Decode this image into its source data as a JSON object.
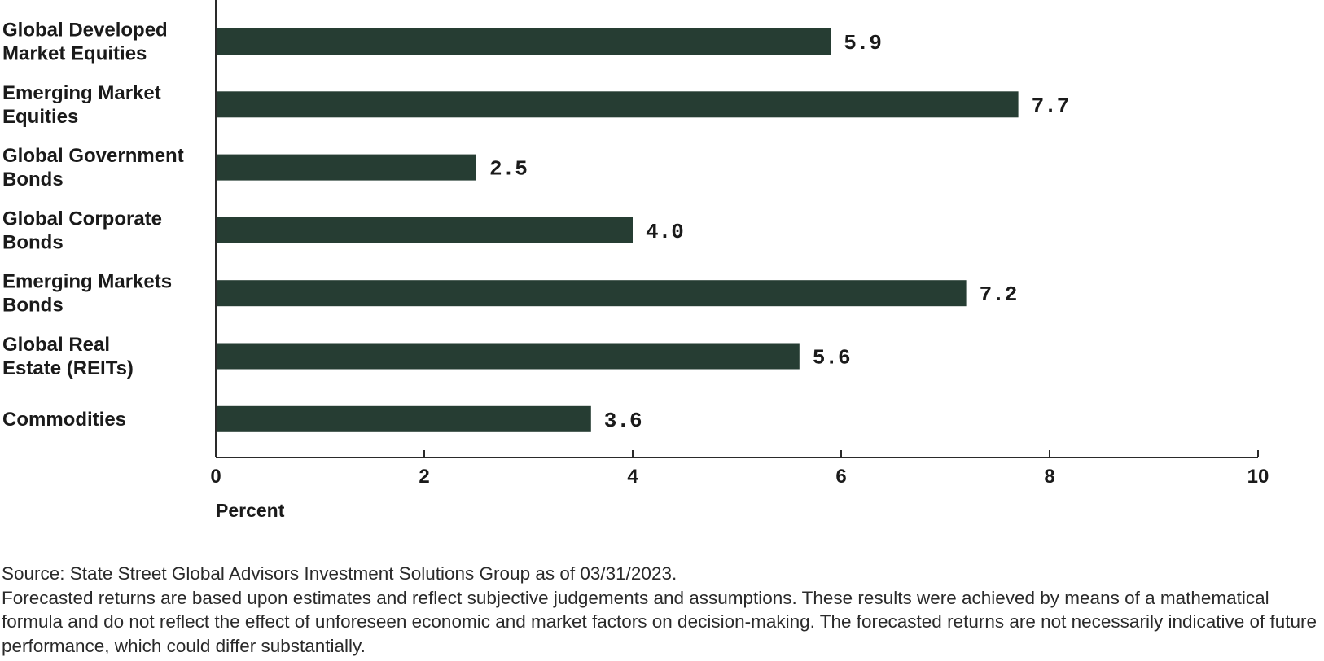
{
  "chart_data": {
    "type": "bar",
    "orientation": "horizontal",
    "categories": [
      [
        "Global Developed",
        "Market Equities"
      ],
      [
        "Emerging Market",
        "Equities"
      ],
      [
        "Global Government",
        "Bonds"
      ],
      [
        "Global Corporate",
        "Bonds"
      ],
      [
        "Emerging Markets",
        "Bonds"
      ],
      [
        "Global Real",
        "Estate (REITs)"
      ],
      [
        "Commodities"
      ]
    ],
    "values": [
      5.9,
      7.7,
      2.5,
      4.0,
      7.2,
      5.6,
      3.6
    ],
    "value_labels": [
      "5.9",
      "7.7",
      "2.5",
      "4.0",
      "7.2",
      "5.6",
      "3.6"
    ],
    "xlabel": "Percent",
    "ylabel": "",
    "xlim": [
      0,
      10
    ],
    "xticks": [
      0,
      2,
      4,
      6,
      8,
      10
    ],
    "grid": false,
    "bar_color": "#263d33"
  },
  "notes": {
    "source": "Source: State Street Global Advisors Investment Solutions Group as of 03/31/2023.",
    "disclaimer": "Forecasted returns are based upon estimates and reflect subjective judgements and assumptions. These results were achieved by means of a mathematical formula and do not reflect the effect of unforeseen economic and market factors on decision-making. The forecasted returns are not necessarily indicative of future performance, which could differ substantially."
  }
}
